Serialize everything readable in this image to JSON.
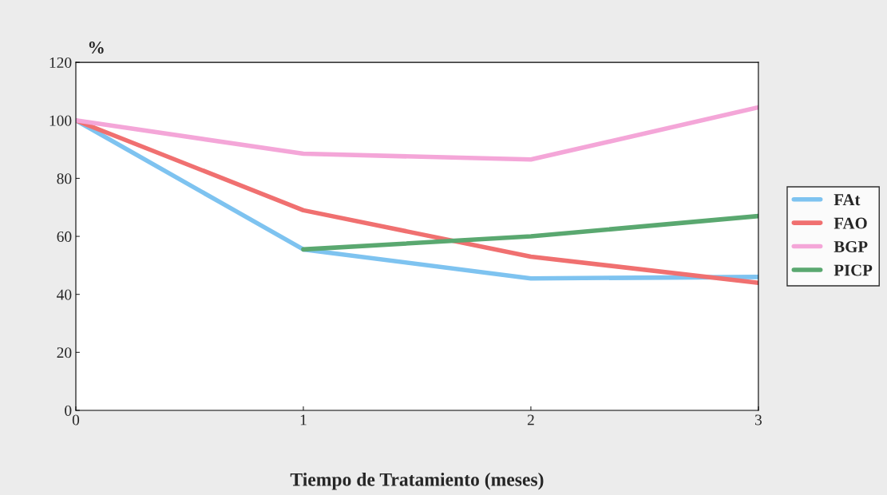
{
  "chart_data": {
    "type": "line",
    "ylabel": "%",
    "xlabel": "Tiempo de Tratamiento (meses)",
    "x": [
      0,
      1,
      2,
      3
    ],
    "series": [
      {
        "name": "FAt",
        "color": "#7ec3f0",
        "values": [
          100,
          55.5,
          45.5,
          46
        ]
      },
      {
        "name": "FAO",
        "color": "#f07070",
        "values": [
          100,
          69,
          53,
          44
        ]
      },
      {
        "name": "BGP",
        "color": "#f4a6d8",
        "values": [
          100,
          88.5,
          86.5,
          104.5
        ]
      },
      {
        "name": "PICP",
        "color": "#5aa870",
        "values": [
          null,
          55.5,
          60,
          67
        ]
      }
    ],
    "xlim": [
      0,
      3
    ],
    "xticks": [
      0,
      1,
      2,
      3
    ],
    "ylim": [
      0,
      120
    ],
    "yticks": [
      0,
      20,
      40,
      60,
      80,
      100,
      120
    ],
    "grid": false,
    "legend": "right",
    "line_style": "solid",
    "marker": "none"
  }
}
